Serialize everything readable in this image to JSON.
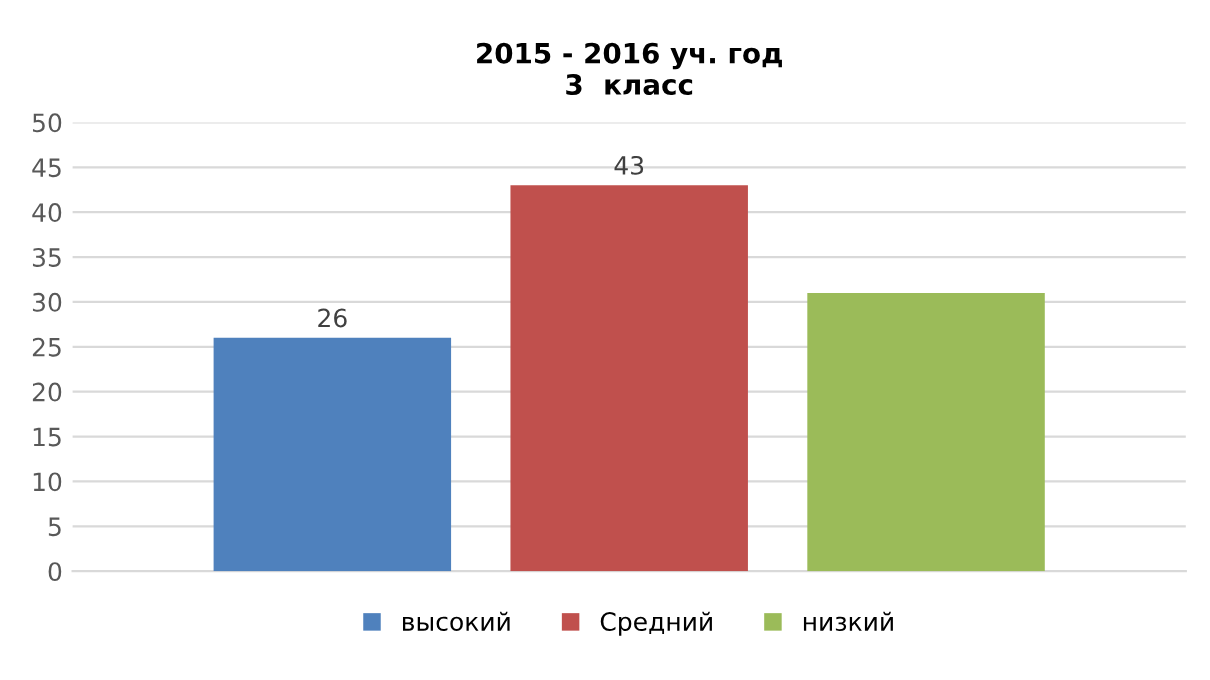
{
  "chart_data": {
    "type": "bar",
    "title": "2015 - 2016 уч. год\n3  класс",
    "categories": [
      null
    ],
    "series": [
      {
        "name": "высокий",
        "color": "#4f81bd",
        "values": [
          26
        ],
        "value_labels": [
          "26"
        ]
      },
      {
        "name": "Средний",
        "color": "#c0504d",
        "values": [
          43
        ],
        "value_labels": [
          "43"
        ]
      },
      {
        "name": "низкий",
        "color": "#9bbb59",
        "values": [
          31
        ],
        "value_labels": [
          null
        ]
      }
    ],
    "ylim": [
      0,
      50
    ],
    "yticks": [
      0,
      5,
      10,
      15,
      20,
      25,
      30,
      35,
      40,
      45,
      50
    ],
    "grid": "y",
    "legend": "bottom"
  }
}
